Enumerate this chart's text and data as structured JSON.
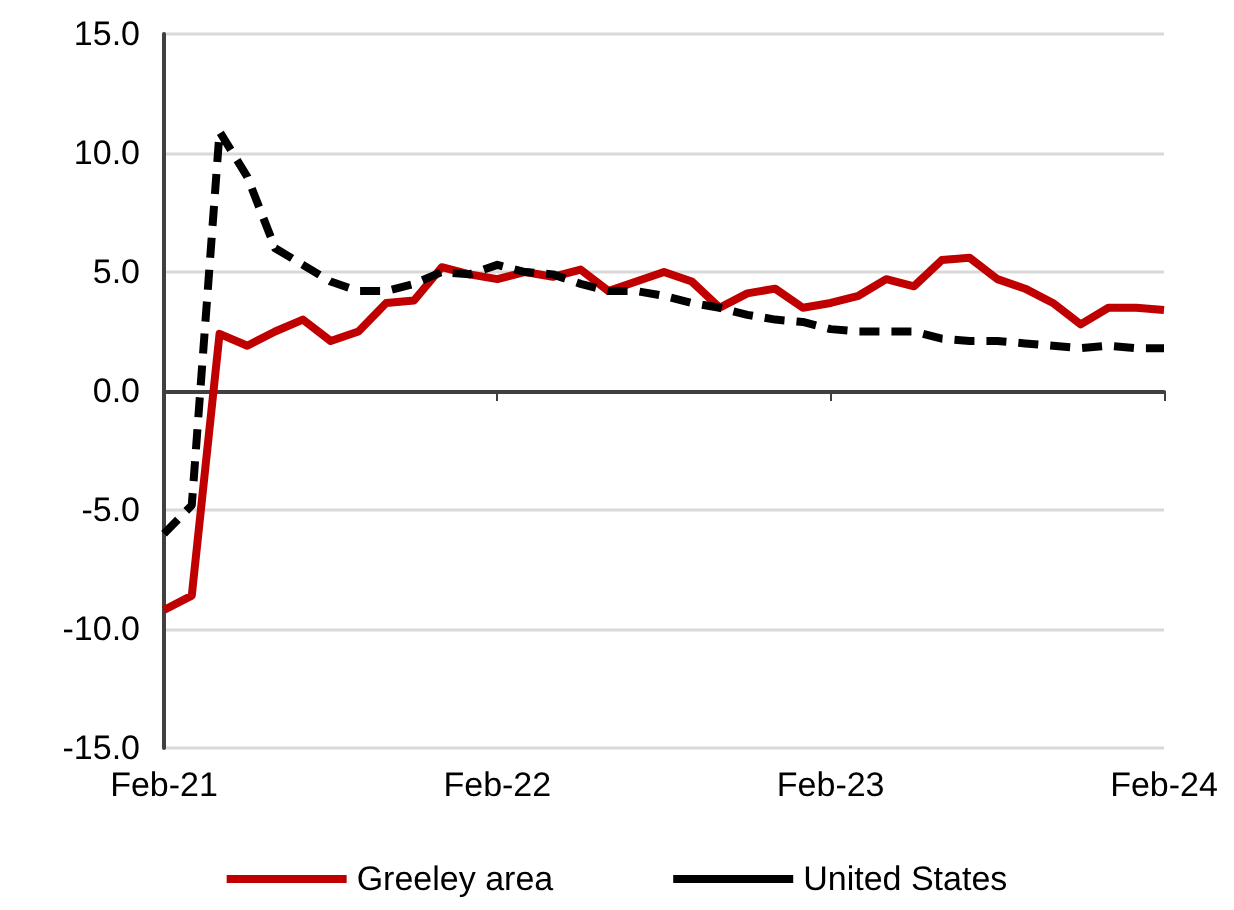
{
  "chart_data": {
    "type": "line",
    "categories": [
      "Feb-21",
      null,
      null,
      null,
      null,
      null,
      null,
      null,
      null,
      null,
      null,
      null,
      "Feb-22",
      null,
      null,
      null,
      null,
      null,
      null,
      null,
      null,
      null,
      null,
      null,
      "Feb-23",
      null,
      null,
      null,
      null,
      null,
      null,
      null,
      null,
      null,
      null,
      null,
      "Feb-24"
    ],
    "series": [
      {
        "name": "Greeley area",
        "color": "#c00000",
        "line_style": "solid",
        "values": [
          -9.2,
          -8.6,
          2.4,
          1.9,
          2.5,
          3.0,
          2.1,
          2.5,
          3.7,
          3.8,
          5.2,
          4.9,
          4.7,
          5.0,
          4.8,
          5.1,
          4.2,
          4.6,
          5.0,
          4.6,
          3.5,
          4.1,
          4.3,
          3.5,
          3.7,
          4.0,
          4.7,
          4.4,
          5.5,
          5.6,
          4.7,
          4.3,
          3.7,
          2.8,
          3.5,
          3.5,
          3.4
        ]
      },
      {
        "name": "United States",
        "color": "#000000",
        "line_style": "dashed",
        "values": [
          -6.0,
          -4.8,
          10.9,
          9.0,
          6.0,
          5.3,
          4.6,
          4.2,
          4.2,
          4.5,
          5.0,
          4.9,
          5.3,
          5.0,
          4.9,
          4.5,
          4.2,
          4.2,
          4.0,
          3.7,
          3.5,
          3.2,
          3.0,
          2.9,
          2.6,
          2.5,
          2.5,
          2.5,
          2.2,
          2.1,
          2.1,
          2.0,
          1.9,
          1.8,
          1.9,
          1.8,
          1.8
        ]
      }
    ],
    "ylim": [
      -15,
      15
    ],
    "yticks": [
      {
        "value": -15,
        "label": "-15.0"
      },
      {
        "value": -10,
        "label": "-10.0"
      },
      {
        "value": -5,
        "label": "-5.0"
      },
      {
        "value": 0,
        "label": "0.0"
      },
      {
        "value": 5,
        "label": "5.0"
      },
      {
        "value": 10,
        "label": "10.0"
      },
      {
        "value": 15,
        "label": "15.0"
      }
    ],
    "grid": "y",
    "legend": "bottom",
    "marker": "none"
  }
}
